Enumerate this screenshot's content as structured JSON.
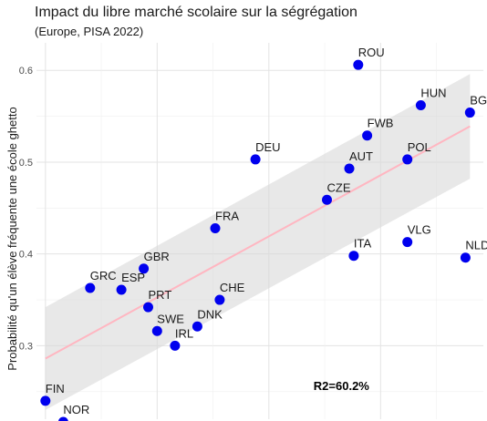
{
  "chart_data": {
    "type": "scatter",
    "title": "Impact du libre marché scolaire sur la ségrégation",
    "subtitle": "(Europe, PISA 2022)",
    "xlabel": "",
    "ylabel": "Probabilité qu'un élève fréquente une école ghetto",
    "ylim": [
      0.22,
      0.63
    ],
    "yticks": [
      0.3,
      0.4,
      0.5,
      0.6
    ],
    "xlim": [
      0,
      1
    ],
    "grid": true,
    "point_color": "#0000ee",
    "trend_color": "#ffb6c1",
    "band_color": "#d9d9d9",
    "points": [
      {
        "label": "ROU",
        "x": 0.72,
        "y": 0.606
      },
      {
        "label": "HUN",
        "x": 0.86,
        "y": 0.562
      },
      {
        "label": "BGR",
        "x": 0.97,
        "y": 0.554
      },
      {
        "label": "FWB",
        "x": 0.74,
        "y": 0.529
      },
      {
        "label": "DEU",
        "x": 0.49,
        "y": 0.503
      },
      {
        "label": "POL",
        "x": 0.83,
        "y": 0.503
      },
      {
        "label": "AUT",
        "x": 0.7,
        "y": 0.493
      },
      {
        "label": "CZE",
        "x": 0.65,
        "y": 0.459
      },
      {
        "label": "FRA",
        "x": 0.4,
        "y": 0.428
      },
      {
        "label": "VLG",
        "x": 0.83,
        "y": 0.413
      },
      {
        "label": "ITA",
        "x": 0.71,
        "y": 0.398
      },
      {
        "label": "NLD",
        "x": 0.96,
        "y": 0.396
      },
      {
        "label": "GBR",
        "x": 0.24,
        "y": 0.384
      },
      {
        "label": "GRC",
        "x": 0.12,
        "y": 0.363
      },
      {
        "label": "ESP",
        "x": 0.19,
        "y": 0.361
      },
      {
        "label": "CHE",
        "x": 0.41,
        "y": 0.35
      },
      {
        "label": "PRT",
        "x": 0.25,
        "y": 0.342
      },
      {
        "label": "DNK",
        "x": 0.36,
        "y": 0.321
      },
      {
        "label": "SWE",
        "x": 0.27,
        "y": 0.316
      },
      {
        "label": "IRL",
        "x": 0.31,
        "y": 0.3
      },
      {
        "label": "FIN",
        "x": 0.02,
        "y": 0.24
      },
      {
        "label": "NOR",
        "x": 0.06,
        "y": 0.217
      }
    ],
    "trend": {
      "x": [
        0.02,
        0.97
      ],
      "y": [
        0.286,
        0.539
      ]
    },
    "band_upper": [
      0.342,
      0.596
    ],
    "band_lower": [
      0.23,
      0.482
    ],
    "annotation": {
      "text": "R2=60.2%",
      "x": 0.62,
      "y": 0.252
    }
  }
}
